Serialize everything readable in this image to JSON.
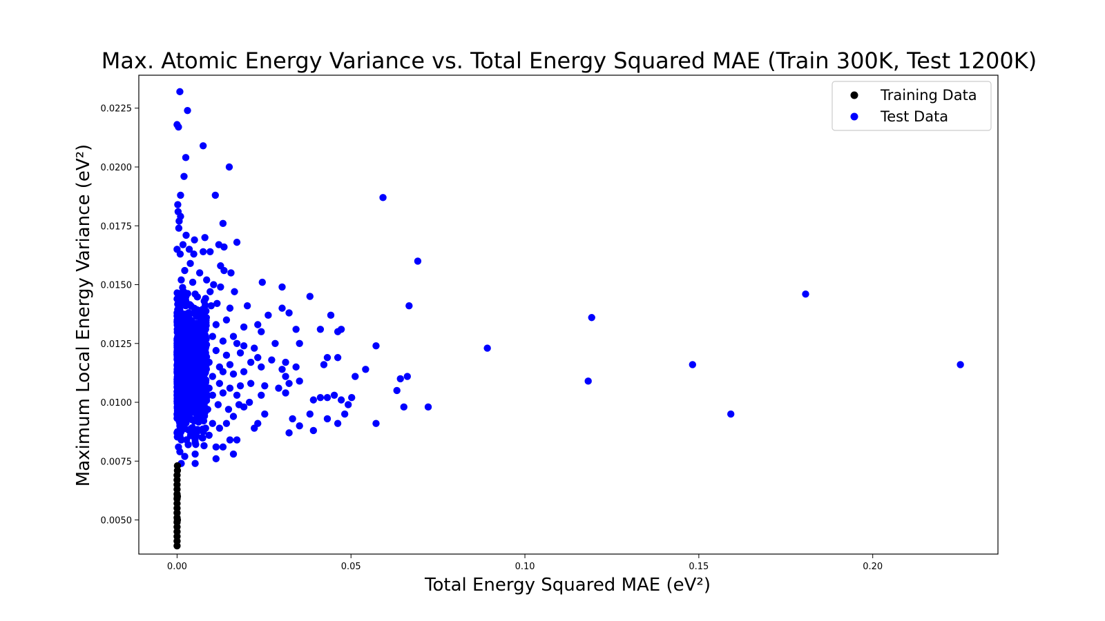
{
  "chart_data": {
    "type": "scatter",
    "title": "Max. Atomic Energy Variance vs. Total Energy Squared MAE (Train 300K, Test 1200K)",
    "xlabel": "Total Energy Squared MAE (eV²)",
    "ylabel": "Maximum Local Energy Variance (eV²)",
    "xlim": [
      -0.011,
      0.236
    ],
    "ylim": [
      0.00355,
      0.0239
    ],
    "x_ticks": [
      0.0,
      0.05,
      0.1,
      0.15,
      0.2
    ],
    "x_tick_labels": [
      "0.00",
      "0.05",
      "0.10",
      "0.15",
      "0.20"
    ],
    "y_ticks": [
      0.005,
      0.0075,
      0.01,
      0.0125,
      0.015,
      0.0175,
      0.02,
      0.0225
    ],
    "y_tick_labels": [
      "0.0050",
      "0.0075",
      "0.0100",
      "0.0125",
      "0.0150",
      "0.0175",
      "0.0200",
      "0.0225"
    ],
    "grid": false,
    "legend_position": "top-right",
    "series": [
      {
        "name": "Training Data",
        "color": "#000000",
        "points": [
          [
            0.0,
            0.0039
          ],
          [
            0.0,
            0.0041
          ],
          [
            0.0,
            0.0043
          ],
          [
            0.0,
            0.0045
          ],
          [
            0.0,
            0.0047
          ],
          [
            0.0,
            0.0049
          ],
          [
            0.0,
            0.0051
          ],
          [
            0.0,
            0.0053
          ],
          [
            0.0,
            0.0055
          ],
          [
            0.0,
            0.0057
          ],
          [
            0.0,
            0.0059
          ],
          [
            0.0,
            0.0061
          ],
          [
            0.0,
            0.0063
          ],
          [
            0.0,
            0.0065
          ],
          [
            0.0,
            0.0067
          ],
          [
            0.0,
            0.0069
          ],
          [
            0.0001,
            0.0071
          ],
          [
            0.0001,
            0.0073
          ],
          [
            0.0001,
            0.005
          ],
          [
            0.0001,
            0.006
          ]
        ]
      },
      {
        "name": "Test Data",
        "color": "#0000ff",
        "points": [
          [
            0.0008,
            0.0232
          ],
          [
            0.003,
            0.0224
          ],
          [
            0.0,
            0.0218
          ],
          [
            0.0004,
            0.0217
          ],
          [
            0.0075,
            0.0209
          ],
          [
            0.0025,
            0.0204
          ],
          [
            0.015,
            0.02
          ],
          [
            0.002,
            0.0196
          ],
          [
            0.011,
            0.0188
          ],
          [
            0.001,
            0.0188
          ],
          [
            0.0002,
            0.0184
          ],
          [
            0.0003,
            0.0181
          ],
          [
            0.001,
            0.0179
          ],
          [
            0.0006,
            0.0177
          ],
          [
            0.0132,
            0.0176
          ],
          [
            0.0005,
            0.0174
          ],
          [
            0.0026,
            0.0171
          ],
          [
            0.008,
            0.017
          ],
          [
            0.0017,
            0.0167
          ],
          [
            0.005,
            0.0169
          ],
          [
            0.0172,
            0.0168
          ],
          [
            0.012,
            0.0167
          ],
          [
            0.0135,
            0.0166
          ],
          [
            0.0,
            0.0165
          ],
          [
            0.0009,
            0.0163
          ],
          [
            0.0035,
            0.0165
          ],
          [
            0.0048,
            0.0163
          ],
          [
            0.0075,
            0.0164
          ],
          [
            0.0095,
            0.0164
          ],
          [
            0.0038,
            0.0159
          ],
          [
            0.0022,
            0.0156
          ],
          [
            0.0125,
            0.0158
          ],
          [
            0.0135,
            0.0156
          ],
          [
            0.0155,
            0.0155
          ],
          [
            0.0065,
            0.0155
          ],
          [
            0.0085,
            0.0152
          ],
          [
            0.0045,
            0.0151
          ],
          [
            0.0012,
            0.0152
          ],
          [
            0.0105,
            0.015
          ],
          [
            0.0125,
            0.0149
          ],
          [
            0.0165,
            0.0147
          ],
          [
            0.0245,
            0.0151
          ],
          [
            0.0302,
            0.0149
          ],
          [
            0.0095,
            0.0147
          ],
          [
            0.0052,
            0.0146
          ],
          [
            0.0078,
            0.0143
          ],
          [
            0.0115,
            0.0142
          ],
          [
            0.0098,
            0.0141
          ],
          [
            0.0015,
            0.0144
          ],
          [
            0.0025,
            0.0141
          ],
          [
            0.0062,
            0.0139
          ],
          [
            0.0152,
            0.014
          ],
          [
            0.0202,
            0.0141
          ],
          [
            0.0302,
            0.014
          ],
          [
            0.0382,
            0.0145
          ],
          [
            0.0592,
            0.0187
          ],
          [
            0.0692,
            0.016
          ],
          [
            0.0667,
            0.0141
          ],
          [
            0.1192,
            0.0136
          ],
          [
            0.1807,
            0.0146
          ],
          [
            0.0442,
            0.0137
          ],
          [
            0.0322,
            0.0138
          ],
          [
            0.0262,
            0.0137
          ],
          [
            0.0232,
            0.0133
          ],
          [
            0.0192,
            0.0132
          ],
          [
            0.0142,
            0.0135
          ],
          [
            0.0112,
            0.0133
          ],
          [
            0.0082,
            0.0131
          ],
          [
            0.0042,
            0.0134
          ],
          [
            0.0018,
            0.0136
          ],
          [
            0.0342,
            0.0131
          ],
          [
            0.0412,
            0.0131
          ],
          [
            0.0462,
            0.013
          ],
          [
            0.0472,
            0.0131
          ],
          [
            0.0242,
            0.013
          ],
          [
            0.0162,
            0.0128
          ],
          [
            0.0132,
            0.0126
          ],
          [
            0.0102,
            0.0128
          ],
          [
            0.0072,
            0.0127
          ],
          [
            0.0032,
            0.0128
          ],
          [
            0.0012,
            0.0129
          ],
          [
            0.0172,
            0.0125
          ],
          [
            0.0192,
            0.0124
          ],
          [
            0.0222,
            0.0123
          ],
          [
            0.0282,
            0.0125
          ],
          [
            0.0352,
            0.0125
          ],
          [
            0.0572,
            0.0124
          ],
          [
            0.0892,
            0.0123
          ],
          [
            0.0052,
            0.0122
          ],
          [
            0.0082,
            0.0121
          ],
          [
            0.0112,
            0.0122
          ],
          [
            0.0142,
            0.012
          ],
          [
            0.0182,
            0.0121
          ],
          [
            0.0232,
            0.0119
          ],
          [
            0.0432,
            0.0119
          ],
          [
            0.0462,
            0.0119
          ],
          [
            0.0312,
            0.0117
          ],
          [
            0.0272,
            0.0118
          ],
          [
            0.0212,
            0.0117
          ],
          [
            0.0152,
            0.0116
          ],
          [
            0.0122,
            0.0115
          ],
          [
            0.0092,
            0.0117
          ],
          [
            0.0062,
            0.0116
          ],
          [
            0.0022,
            0.0117
          ],
          [
            0.0012,
            0.0119
          ],
          [
            0.0302,
            0.0114
          ],
          [
            0.0342,
            0.0115
          ],
          [
            0.0422,
            0.0116
          ],
          [
            0.0542,
            0.0114
          ],
          [
            0.0242,
            0.0115
          ],
          [
            0.0192,
            0.0113
          ],
          [
            0.0162,
            0.0112
          ],
          [
            0.0132,
            0.0113
          ],
          [
            0.0102,
            0.0111
          ],
          [
            0.0072,
            0.0112
          ],
          [
            0.0042,
            0.0111
          ],
          [
            0.0312,
            0.0111
          ],
          [
            0.0512,
            0.0111
          ],
          [
            0.0662,
            0.0111
          ],
          [
            0.0642,
            0.011
          ],
          [
            0.1182,
            0.0109
          ],
          [
            0.1482,
            0.0116
          ],
          [
            0.2252,
            0.0116
          ],
          [
            0.0352,
            0.0109
          ],
          [
            0.0322,
            0.0108
          ],
          [
            0.0292,
            0.0106
          ],
          [
            0.0252,
            0.0107
          ],
          [
            0.0212,
            0.0108
          ],
          [
            0.0182,
            0.0107
          ],
          [
            0.0152,
            0.0106
          ],
          [
            0.0122,
            0.0108
          ],
          [
            0.0092,
            0.0106
          ],
          [
            0.0062,
            0.0107
          ],
          [
            0.0032,
            0.0106
          ],
          [
            0.0012,
            0.0108
          ],
          [
            0.0632,
            0.0105
          ],
          [
            0.0312,
            0.0104
          ],
          [
            0.0242,
            0.0103
          ],
          [
            0.0172,
            0.0103
          ],
          [
            0.0132,
            0.0104
          ],
          [
            0.0102,
            0.0103
          ],
          [
            0.0072,
            0.0102
          ],
          [
            0.0042,
            0.0104
          ],
          [
            0.0022,
            0.0101
          ],
          [
            0.0392,
            0.0101
          ],
          [
            0.0412,
            0.0102
          ],
          [
            0.0432,
            0.0102
          ],
          [
            0.0452,
            0.0103
          ],
          [
            0.0472,
            0.0101
          ],
          [
            0.0492,
            0.0099
          ],
          [
            0.0502,
            0.0102
          ],
          [
            0.0572,
            0.0091
          ],
          [
            0.0652,
            0.0098
          ],
          [
            0.0722,
            0.0098
          ],
          [
            0.1592,
            0.0095
          ],
          [
            0.0482,
            0.0095
          ],
          [
            0.0382,
            0.0095
          ],
          [
            0.0332,
            0.0093
          ],
          [
            0.0432,
            0.0093
          ],
          [
            0.0462,
            0.0091
          ],
          [
            0.0352,
            0.009
          ],
          [
            0.0392,
            0.0088
          ],
          [
            0.0322,
            0.0087
          ],
          [
            0.0252,
            0.0095
          ],
          [
            0.0222,
            0.0089
          ],
          [
            0.0232,
            0.0091
          ],
          [
            0.0192,
            0.0098
          ],
          [
            0.0162,
            0.0094
          ],
          [
            0.0142,
            0.0091
          ],
          [
            0.0122,
            0.0089
          ],
          [
            0.0102,
            0.0091
          ],
          [
            0.0082,
            0.0089
          ],
          [
            0.0062,
            0.0088
          ],
          [
            0.0042,
            0.0089
          ],
          [
            0.0022,
            0.0091
          ],
          [
            0.0172,
            0.0084
          ],
          [
            0.0152,
            0.0084
          ],
          [
            0.0132,
            0.0081
          ],
          [
            0.0112,
            0.0081
          ],
          [
            0.0092,
            0.0086
          ],
          [
            0.0072,
            0.0085
          ],
          [
            0.0052,
            0.0083
          ],
          [
            0.0032,
            0.0082
          ],
          [
            0.0012,
            0.0084
          ],
          [
            0.0162,
            0.0078
          ],
          [
            0.0112,
            0.0076
          ],
          [
            0.0052,
            0.0074
          ],
          [
            0.0052,
            0.0078
          ],
          [
            0.0022,
            0.0077
          ],
          [
            0.0012,
            0.0074
          ],
          [
            0.0008,
            0.0079
          ],
          [
            0.0004,
            0.0081
          ],
          [
            0.0008,
            0.0086
          ],
          [
            0.0028,
            0.0096
          ],
          [
            0.0058,
            0.0099
          ],
          [
            0.0088,
            0.0097
          ],
          [
            0.0118,
            0.0099
          ],
          [
            0.0148,
            0.0097
          ],
          [
            0.0178,
            0.0099
          ],
          [
            0.0208,
            0.01
          ]
        ],
        "dense_cluster": {
          "x_range": [
            0.0,
            0.0085
          ],
          "y_range": [
            0.0074,
            0.0155
          ],
          "count": 1100
        }
      }
    ]
  }
}
